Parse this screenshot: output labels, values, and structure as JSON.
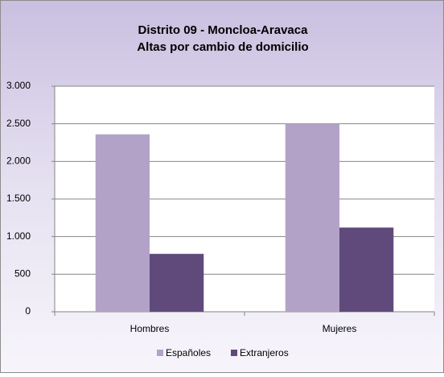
{
  "chart_data": {
    "type": "bar",
    "title": "Distrito 09 - Moncloa-Aravaca",
    "subtitle": "Altas por cambio de domicilio",
    "categories": [
      "Hombres",
      "Mujeres"
    ],
    "series": [
      {
        "name": "Españoles",
        "color": "#b3a2c7",
        "values": [
          2360,
          2500
        ]
      },
      {
        "name": "Extranjeros",
        "color": "#604a7b",
        "values": [
          770,
          1120
        ]
      }
    ],
    "ylim": [
      0,
      3000
    ],
    "yticks": [
      {
        "value": 0,
        "label": "0"
      },
      {
        "value": 500,
        "label": "500"
      },
      {
        "value": 1000,
        "label": "1.000"
      },
      {
        "value": 1500,
        "label": "1.500"
      },
      {
        "value": 2000,
        "label": "2.000"
      },
      {
        "value": 2500,
        "label": "2.500"
      },
      {
        "value": 3000,
        "label": "3.000"
      }
    ],
    "grid": true,
    "legend": "bottom"
  }
}
